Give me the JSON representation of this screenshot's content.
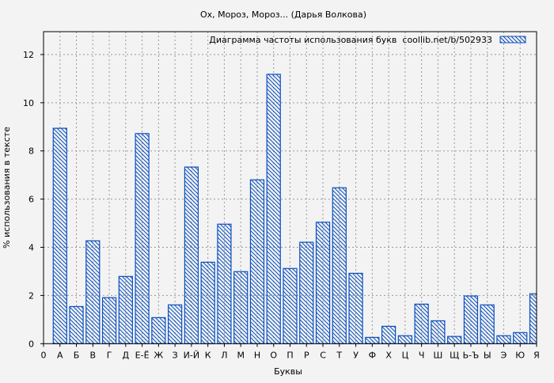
{
  "chart_data": {
    "type": "bar",
    "title": "Ох, Мороз, Мороз... (Дарья Волкова)",
    "xlabel": "Буквы",
    "ylabel": "% использования в тексте",
    "x_origin_label": "0",
    "categories": [
      "А",
      "Б",
      "В",
      "Г",
      "Д",
      "Е-Ё",
      "Ж",
      "З",
      "И-Й",
      "К",
      "Л",
      "М",
      "Н",
      "О",
      "П",
      "Р",
      "С",
      "Т",
      "У",
      "Ф",
      "Х",
      "Ц",
      "Ч",
      "Ш",
      "Щ",
      "Ь-Ъ",
      "Ы",
      "Э",
      "Ю",
      "Я"
    ],
    "series": [
      {
        "name": "Диаграмма частоты использования букв  coollib.net/b/502933",
        "values": [
          8.94,
          1.54,
          4.27,
          1.91,
          2.79,
          8.72,
          1.08,
          1.61,
          7.33,
          3.38,
          4.96,
          2.99,
          6.8,
          11.18,
          3.12,
          4.21,
          5.04,
          6.47,
          2.92,
          0.26,
          0.72,
          0.33,
          1.64,
          0.95,
          0.3,
          1.98,
          1.61,
          0.33,
          0.46,
          2.07
        ]
      }
    ],
    "ylim": [
      0,
      12.95
    ],
    "xlim": [
      0,
      30
    ],
    "yticks": [
      0,
      2,
      4,
      6,
      8,
      10,
      12
    ],
    "grid": true,
    "legend_position": "top-right",
    "bar_color": "#0a4fbf",
    "background": "#f3f3f3"
  }
}
